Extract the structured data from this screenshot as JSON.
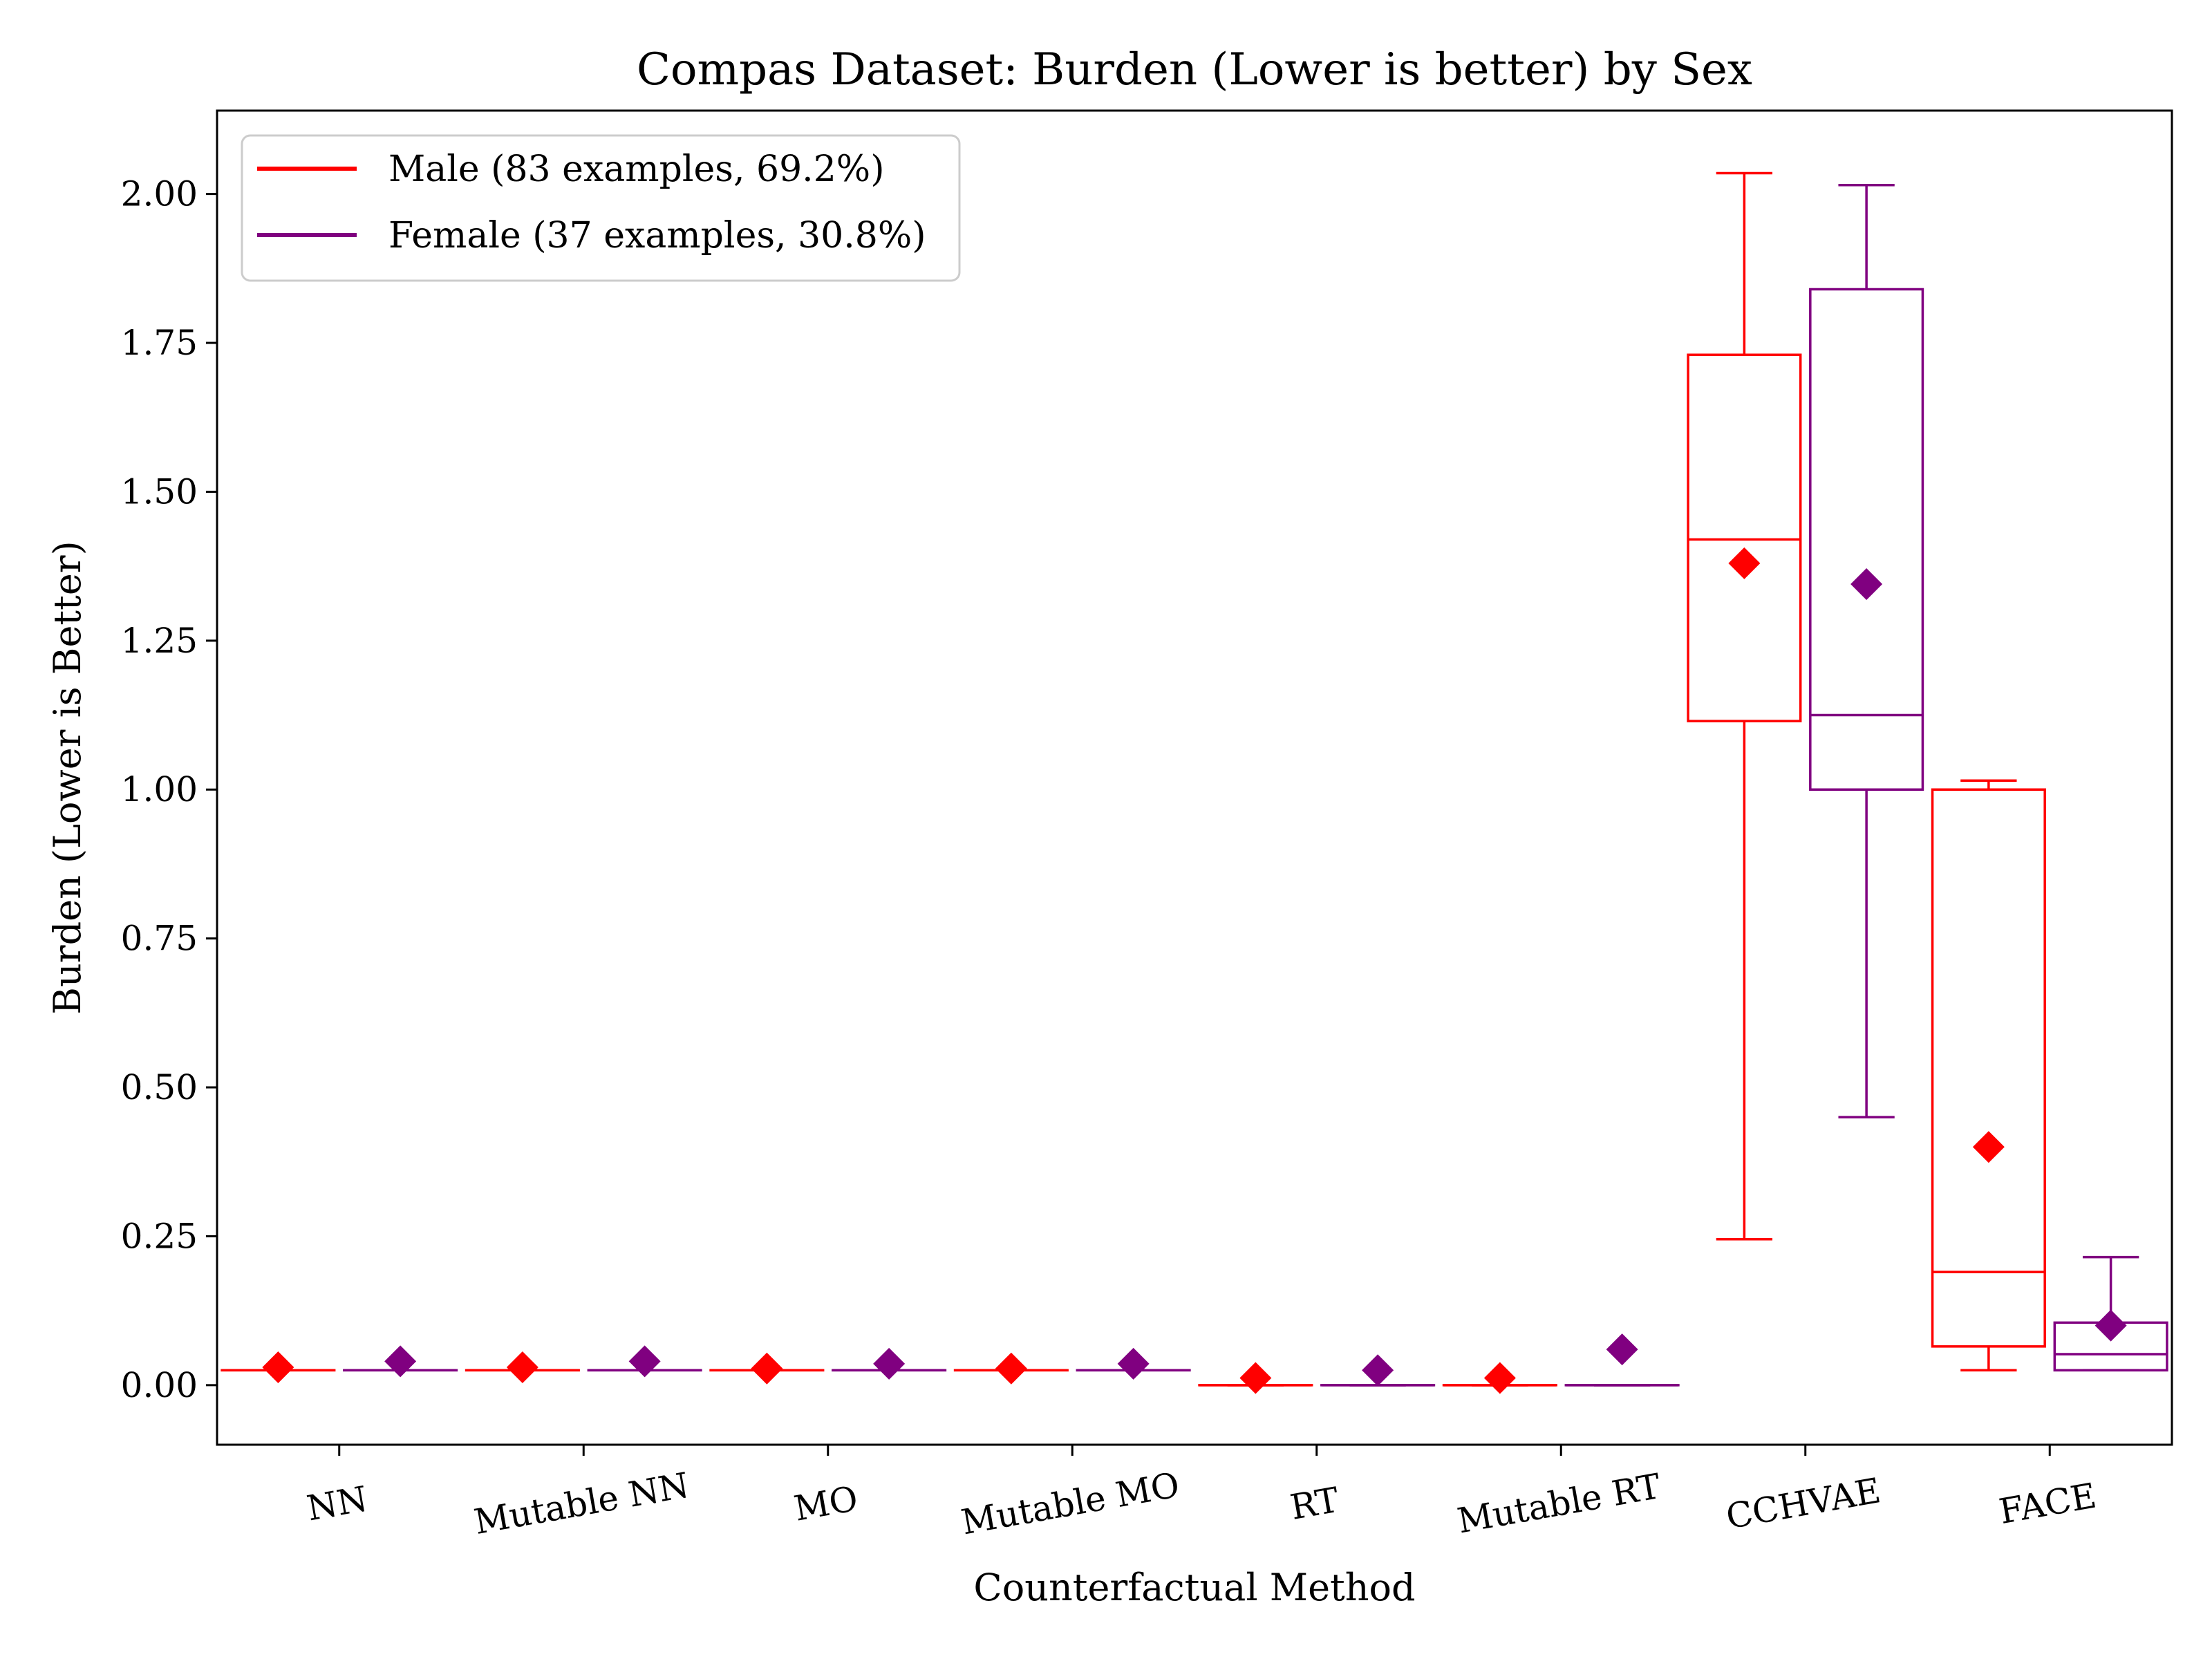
{
  "chart_data": {
    "type": "box",
    "title": "Compas Dataset: Burden (Lower is better) by Sex",
    "xlabel": "Counterfactual Method",
    "ylabel": "Burden (Lower is Better)",
    "ylim": [
      -0.1,
      2.14
    ],
    "yticks": [
      "0.00",
      "0.25",
      "0.50",
      "0.75",
      "1.00",
      "1.25",
      "1.50",
      "1.75",
      "2.00"
    ],
    "categories": [
      "NN",
      "Mutable NN",
      "MO",
      "Mutable MO",
      "RT",
      "Mutable RT",
      "CCHVAE",
      "FACE"
    ],
    "grid": false,
    "legend_position": "top-left",
    "series": [
      {
        "name": "Male (83 examples, 69.2%)",
        "color": "#ff0000",
        "boxes": [
          {
            "whislo": 0.025,
            "q1": 0.025,
            "med": 0.025,
            "q3": 0.025,
            "whishi": 0.025,
            "mean": 0.03
          },
          {
            "whislo": 0.025,
            "q1": 0.025,
            "med": 0.025,
            "q3": 0.025,
            "whishi": 0.025,
            "mean": 0.03
          },
          {
            "whislo": 0.025,
            "q1": 0.025,
            "med": 0.025,
            "q3": 0.025,
            "whishi": 0.025,
            "mean": 0.028
          },
          {
            "whislo": 0.025,
            "q1": 0.025,
            "med": 0.025,
            "q3": 0.025,
            "whishi": 0.025,
            "mean": 0.028
          },
          {
            "whislo": 0.0,
            "q1": 0.0,
            "med": 0.0,
            "q3": 0.0,
            "whishi": 0.0,
            "mean": 0.012
          },
          {
            "whislo": 0.0,
            "q1": 0.0,
            "med": 0.0,
            "q3": 0.0,
            "whishi": 0.0,
            "mean": 0.012
          },
          {
            "whislo": 0.245,
            "q1": 1.115,
            "med": 1.42,
            "q3": 1.73,
            "whishi": 2.035,
            "mean": 1.38
          },
          {
            "whislo": 0.025,
            "q1": 0.065,
            "med": 0.19,
            "q3": 1.0,
            "whishi": 1.015,
            "mean": 0.4
          }
        ]
      },
      {
        "name": "Female (37 examples, 30.8%)",
        "color": "#800080",
        "boxes": [
          {
            "whislo": 0.025,
            "q1": 0.025,
            "med": 0.025,
            "q3": 0.025,
            "whishi": 0.025,
            "mean": 0.04
          },
          {
            "whislo": 0.025,
            "q1": 0.025,
            "med": 0.025,
            "q3": 0.025,
            "whishi": 0.025,
            "mean": 0.04
          },
          {
            "whislo": 0.025,
            "q1": 0.025,
            "med": 0.025,
            "q3": 0.025,
            "whishi": 0.025,
            "mean": 0.036
          },
          {
            "whislo": 0.025,
            "q1": 0.025,
            "med": 0.025,
            "q3": 0.025,
            "whishi": 0.025,
            "mean": 0.036
          },
          {
            "whislo": 0.0,
            "q1": 0.0,
            "med": 0.0,
            "q3": 0.0,
            "whishi": 0.0,
            "mean": 0.025
          },
          {
            "whislo": 0.0,
            "q1": 0.0,
            "med": 0.0,
            "q3": 0.0,
            "whishi": 0.0,
            "mean": 0.06
          },
          {
            "whislo": 0.45,
            "q1": 1.0,
            "med": 1.125,
            "q3": 1.84,
            "whishi": 2.015,
            "mean": 1.345
          },
          {
            "whislo": 0.025,
            "q1": 0.025,
            "med": 0.052,
            "q3": 0.105,
            "whishi": 0.215,
            "mean": 0.1
          }
        ]
      }
    ]
  }
}
